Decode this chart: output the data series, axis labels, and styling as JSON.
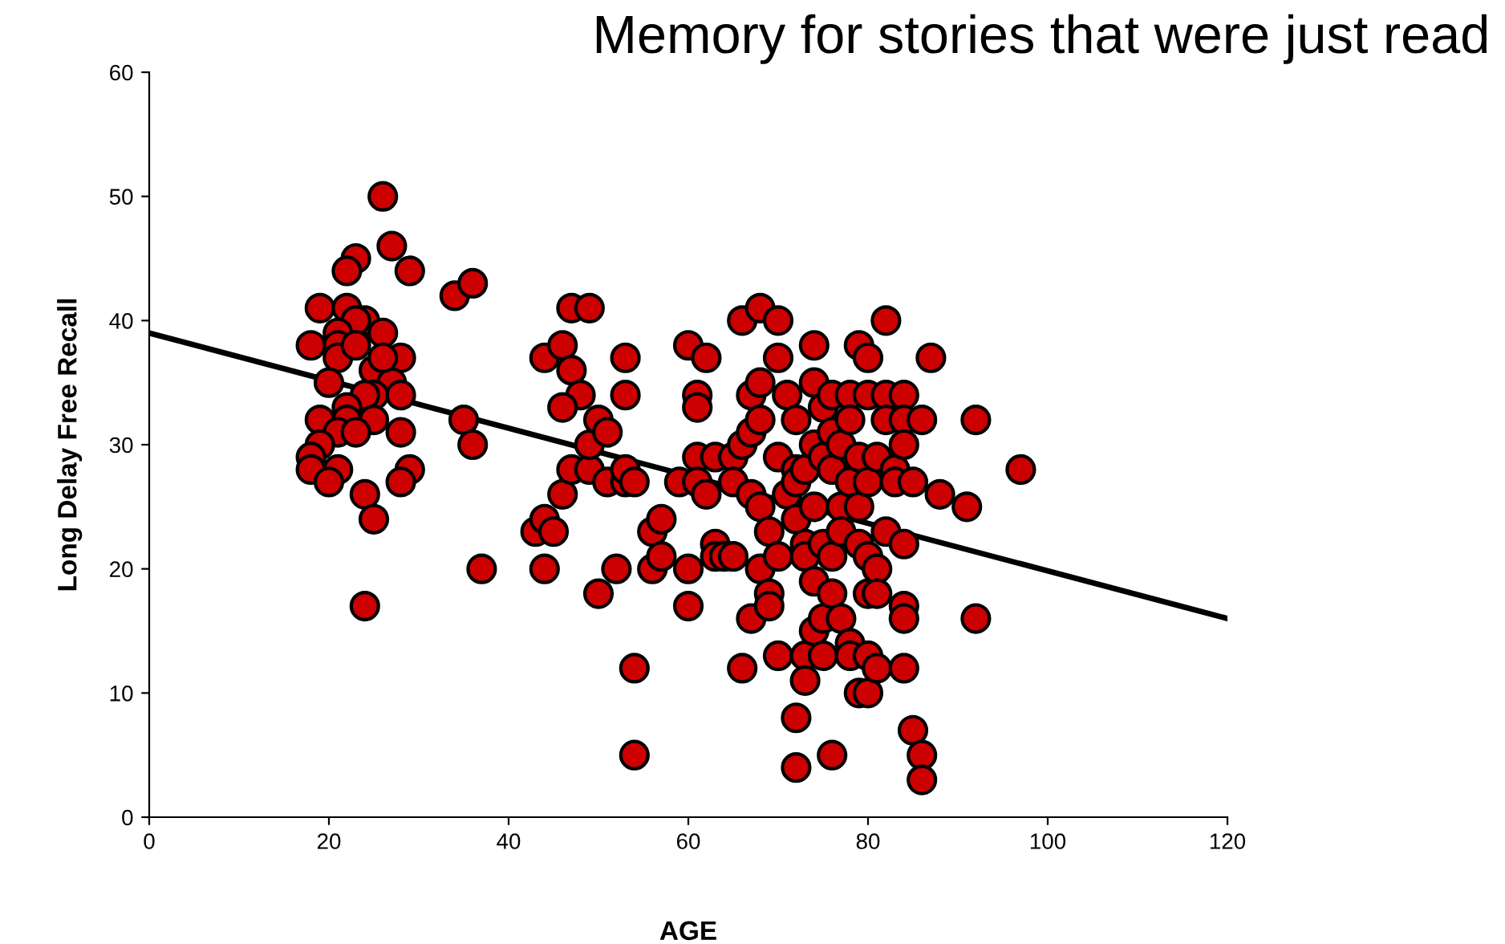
{
  "chart_data": {
    "type": "scatter",
    "title": "Memory for stories that were just read",
    "xlabel": "AGE",
    "ylabel": "Long Delay Free Recall",
    "xlim": [
      0,
      120
    ],
    "xticks": [
      0,
      20,
      40,
      60,
      80,
      100,
      120
    ],
    "ylim": [
      0,
      60
    ],
    "yticks": [
      0,
      10,
      20,
      30,
      40,
      50,
      60
    ],
    "grid": false,
    "legend": false,
    "marker": "circle",
    "series": [
      {
        "color": "#cc0000",
        "x": [
          26,
          27,
          23,
          22,
          29,
          19,
          22,
          24,
          23,
          26,
          21,
          21,
          18,
          21,
          28,
          25,
          20,
          27,
          28,
          25,
          24,
          22,
          22,
          19,
          25,
          21,
          28,
          19,
          18,
          18,
          21,
          29,
          20,
          24,
          28,
          25,
          24,
          23,
          23,
          26,
          34,
          36,
          35,
          36,
          37,
          43,
          44,
          44,
          44,
          45,
          46,
          46,
          47,
          47,
          47,
          48,
          46,
          49,
          49,
          49,
          50,
          51,
          50,
          51,
          52,
          53,
          53,
          53,
          53,
          54,
          54,
          54,
          56,
          56,
          57,
          57,
          59,
          60,
          60,
          60,
          61,
          61,
          61,
          61,
          62,
          62,
          63,
          63,
          63,
          64,
          65,
          65,
          65,
          66,
          66,
          66,
          67,
          67,
          67,
          67,
          68,
          68,
          68,
          68,
          68,
          69,
          69,
          69,
          70,
          70,
          70,
          70,
          70,
          71,
          71,
          72,
          72,
          72,
          72,
          72,
          72,
          73,
          73,
          73,
          73,
          73,
          74,
          74,
          74,
          74,
          74,
          74,
          75,
          75,
          75,
          75,
          75,
          76,
          76,
          76,
          76,
          76,
          76,
          77,
          77,
          77,
          77,
          78,
          78,
          78,
          78,
          78,
          79,
          79,
          79,
          79,
          79,
          80,
          80,
          80,
          80,
          80,
          80,
          80,
          81,
          81,
          81,
          81,
          82,
          82,
          82,
          82,
          83,
          83,
          84,
          84,
          84,
          84,
          84,
          84,
          84,
          85,
          85,
          86,
          86,
          86,
          87,
          88,
          91,
          92,
          92,
          97
        ],
        "values": [
          50,
          46,
          45,
          44,
          44,
          41,
          41,
          40,
          40,
          39,
          39,
          38,
          38,
          37,
          37,
          36,
          35,
          35,
          34,
          34,
          34,
          33,
          32,
          32,
          32,
          31,
          31,
          30,
          29,
          28,
          28,
          28,
          27,
          26,
          27,
          24,
          17,
          31,
          38,
          37,
          42,
          43,
          32,
          30,
          20,
          23,
          24,
          20,
          37,
          23,
          38,
          26,
          41,
          36,
          28,
          34,
          33,
          41,
          28,
          30,
          32,
          27,
          18,
          31,
          20,
          37,
          34,
          27,
          28,
          27,
          12,
          5,
          20,
          23,
          24,
          21,
          27,
          38,
          20,
          17,
          34,
          33,
          29,
          27,
          37,
          26,
          29,
          22,
          21,
          21,
          29,
          27,
          21,
          40,
          30,
          12,
          34,
          31,
          26,
          16,
          41,
          35,
          32,
          25,
          20,
          23,
          18,
          17,
          40,
          37,
          29,
          21,
          13,
          34,
          26,
          32,
          28,
          27,
          24,
          8,
          4,
          28,
          22,
          21,
          13,
          11,
          38,
          35,
          30,
          25,
          15,
          19,
          33,
          29,
          22,
          16,
          13,
          34,
          31,
          28,
          21,
          18,
          5,
          30,
          25,
          23,
          16,
          34,
          32,
          27,
          14,
          13,
          38,
          29,
          25,
          22,
          10,
          37,
          34,
          27,
          21,
          18,
          13,
          10,
          29,
          20,
          18,
          12,
          40,
          34,
          32,
          23,
          28,
          27,
          34,
          32,
          30,
          22,
          17,
          16,
          12,
          27,
          7,
          32,
          5,
          3,
          37,
          26,
          25,
          32,
          16,
          28
        ]
      },
      {
        "type": "line",
        "color": "#000000",
        "marker": "none",
        "x": [
          0,
          120
        ],
        "values": [
          39,
          16
        ]
      }
    ]
  }
}
